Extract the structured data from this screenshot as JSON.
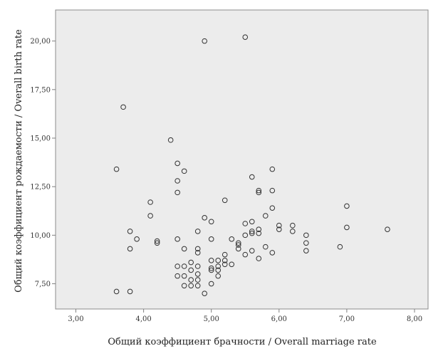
{
  "chart_data": {
    "type": "scatter",
    "xlabel": "Общий коэффициент брачности / Overall marriage rate",
    "ylabel": "Общий коэффициент рождаемости / Overall birth rate",
    "xlim": [
      2.7,
      8.2
    ],
    "ylim": [
      6.2,
      21.6
    ],
    "x_ticks": [
      3,
      4,
      5,
      6,
      7,
      8
    ],
    "x_tick_labels": [
      "3,00",
      "4,00",
      "5,00",
      "6,00",
      "7,00",
      "8,00"
    ],
    "y_ticks": [
      7.5,
      10,
      12.5,
      15,
      17.5,
      20
    ],
    "y_tick_labels": [
      "7,50",
      "10,00",
      "12,50",
      "15,00",
      "17,50",
      "20,00"
    ],
    "colors": {
      "plot_bg": "#ececec",
      "point": "#333333",
      "axis": "#808080"
    },
    "points": [
      [
        3.6,
        13.4
      ],
      [
        3.6,
        7.1
      ],
      [
        3.7,
        16.6
      ],
      [
        3.8,
        10.2
      ],
      [
        3.8,
        9.3
      ],
      [
        3.8,
        7.1
      ],
      [
        3.9,
        9.8
      ],
      [
        4.1,
        11.7
      ],
      [
        4.1,
        11.0
      ],
      [
        4.2,
        9.7
      ],
      [
        4.2,
        9.6
      ],
      [
        4.4,
        14.9
      ],
      [
        4.5,
        13.7
      ],
      [
        4.5,
        12.8
      ],
      [
        4.5,
        12.2
      ],
      [
        4.5,
        9.8
      ],
      [
        4.5,
        8.4
      ],
      [
        4.5,
        7.9
      ],
      [
        4.6,
        13.3
      ],
      [
        4.6,
        9.3
      ],
      [
        4.6,
        8.4
      ],
      [
        4.6,
        7.9
      ],
      [
        4.6,
        7.4
      ],
      [
        4.7,
        8.6
      ],
      [
        4.7,
        8.2
      ],
      [
        4.7,
        7.7
      ],
      [
        4.7,
        7.4
      ],
      [
        4.8,
        10.2
      ],
      [
        4.8,
        9.3
      ],
      [
        4.8,
        9.1
      ],
      [
        4.8,
        8.4
      ],
      [
        4.8,
        8.0
      ],
      [
        4.8,
        7.7
      ],
      [
        4.8,
        7.4
      ],
      [
        4.9,
        20.0
      ],
      [
        4.9,
        10.9
      ],
      [
        4.9,
        7.0
      ],
      [
        5.0,
        10.7
      ],
      [
        5.0,
        9.8
      ],
      [
        5.0,
        8.7
      ],
      [
        5.0,
        8.3
      ],
      [
        5.0,
        8.2
      ],
      [
        5.0,
        7.5
      ],
      [
        5.1,
        8.7
      ],
      [
        5.1,
        8.4
      ],
      [
        5.1,
        8.2
      ],
      [
        5.1,
        7.9
      ],
      [
        5.2,
        11.8
      ],
      [
        5.2,
        9.0
      ],
      [
        5.2,
        8.7
      ],
      [
        5.2,
        8.5
      ],
      [
        5.3,
        9.8
      ],
      [
        5.3,
        8.5
      ],
      [
        5.4,
        9.6
      ],
      [
        5.4,
        9.5
      ],
      [
        5.4,
        9.3
      ],
      [
        5.5,
        20.2
      ],
      [
        5.5,
        10.6
      ],
      [
        5.5,
        10.0
      ],
      [
        5.5,
        9.0
      ],
      [
        5.6,
        13.0
      ],
      [
        5.6,
        10.7
      ],
      [
        5.6,
        10.2
      ],
      [
        5.6,
        10.1
      ],
      [
        5.6,
        9.2
      ],
      [
        5.7,
        12.3
      ],
      [
        5.7,
        12.2
      ],
      [
        5.7,
        10.3
      ],
      [
        5.7,
        10.1
      ],
      [
        5.7,
        8.8
      ],
      [
        5.8,
        11.0
      ],
      [
        5.8,
        9.4
      ],
      [
        5.9,
        13.4
      ],
      [
        5.9,
        12.3
      ],
      [
        5.9,
        11.4
      ],
      [
        5.9,
        9.1
      ],
      [
        6.0,
        10.5
      ],
      [
        6.0,
        10.3
      ],
      [
        6.2,
        10.5
      ],
      [
        6.2,
        10.2
      ],
      [
        6.4,
        10.0
      ],
      [
        6.4,
        9.6
      ],
      [
        6.4,
        9.2
      ],
      [
        6.9,
        9.4
      ],
      [
        7.0,
        11.5
      ],
      [
        7.0,
        10.4
      ],
      [
        7.6,
        10.3
      ]
    ]
  }
}
